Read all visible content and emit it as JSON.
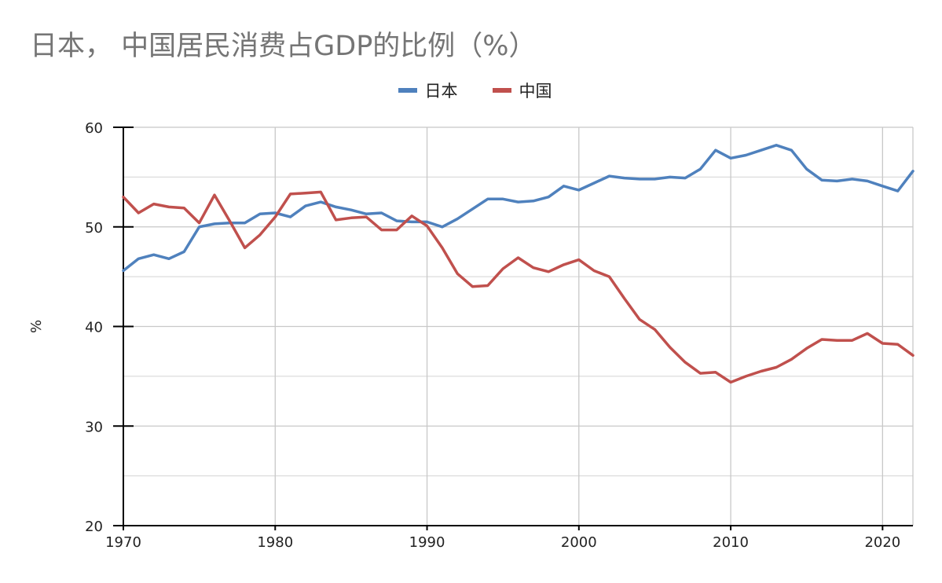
{
  "title": "日本， 中国居民消费占GDP的比例（%）",
  "chart_data": {
    "type": "line",
    "title": "日本， 中国居民消费占GDP的比例（%）",
    "ylabel": "%",
    "xlabel": "",
    "xlim": [
      1970,
      2022
    ],
    "ylim": [
      20,
      60
    ],
    "x_ticks": [
      1970,
      1980,
      1990,
      2000,
      2010,
      2020
    ],
    "y_ticks": [
      20,
      30,
      40,
      50,
      60
    ],
    "grid": true,
    "legend_position": "top-center",
    "x": [
      1970,
      1971,
      1972,
      1973,
      1974,
      1975,
      1976,
      1977,
      1978,
      1979,
      1980,
      1981,
      1982,
      1983,
      1984,
      1985,
      1986,
      1987,
      1988,
      1989,
      1990,
      1991,
      1992,
      1993,
      1994,
      1995,
      1996,
      1997,
      1998,
      1999,
      2000,
      2001,
      2002,
      2003,
      2004,
      2005,
      2006,
      2007,
      2008,
      2009,
      2010,
      2011,
      2012,
      2013,
      2014,
      2015,
      2016,
      2017,
      2018,
      2019,
      2020,
      2021,
      2022
    ],
    "series": [
      {
        "name": "日本",
        "color": "#4f81bd",
        "values": [
          45.6,
          46.8,
          47.2,
          46.8,
          47.5,
          50.0,
          50.3,
          50.4,
          50.4,
          51.3,
          51.4,
          51.0,
          52.1,
          52.5,
          52.0,
          51.7,
          51.3,
          51.4,
          50.6,
          50.5,
          50.5,
          50.0,
          50.8,
          51.8,
          52.8,
          52.8,
          52.5,
          52.6,
          53.0,
          54.1,
          53.7,
          54.4,
          55.1,
          54.9,
          54.8,
          54.8,
          55.0,
          54.9,
          55.8,
          57.7,
          56.9,
          57.2,
          57.7,
          58.2,
          57.7,
          55.8,
          54.7,
          54.6,
          54.8,
          54.6,
          54.1,
          53.6,
          55.6
        ]
      },
      {
        "name": "中国",
        "color": "#c0504d",
        "values": [
          53.0,
          51.4,
          52.3,
          52.0,
          51.9,
          50.4,
          53.2,
          50.6,
          47.9,
          49.2,
          51.0,
          53.3,
          53.4,
          53.5,
          50.7,
          50.9,
          51.0,
          49.7,
          49.7,
          51.1,
          50.1,
          47.9,
          45.3,
          44.0,
          44.1,
          45.8,
          46.9,
          45.9,
          45.5,
          46.2,
          46.7,
          45.6,
          45.0,
          42.8,
          40.7,
          39.7,
          37.9,
          36.4,
          35.3,
          35.4,
          34.4,
          35.0,
          35.5,
          35.9,
          36.7,
          37.8,
          38.7,
          38.6,
          38.6,
          39.3,
          38.3,
          38.2,
          37.1
        ]
      }
    ]
  }
}
